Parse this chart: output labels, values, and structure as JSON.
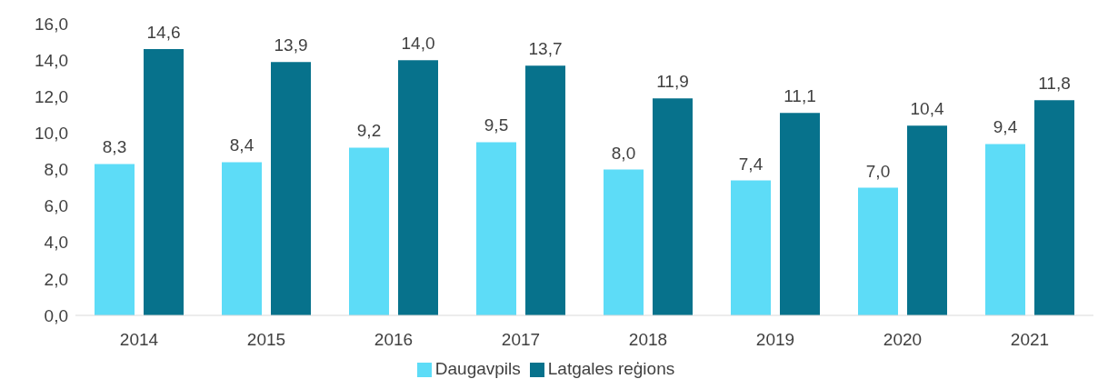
{
  "chart_data": {
    "type": "bar",
    "categories": [
      "2014",
      "2015",
      "2016",
      "2017",
      "2018",
      "2019",
      "2020",
      "2021"
    ],
    "series": [
      {
        "name": "Daugavpils",
        "color": "#5ddcf7",
        "values": [
          8.3,
          8.4,
          9.2,
          9.5,
          8.0,
          7.4,
          7.0,
          9.4
        ],
        "value_labels": [
          "8,3",
          "8,4",
          "9,2",
          "9,5",
          "8,0",
          "7,4",
          "7,0",
          "9,4"
        ]
      },
      {
        "name": "Latgales reģions",
        "color": "#07728c",
        "values": [
          14.6,
          13.9,
          14.0,
          13.7,
          11.9,
          11.1,
          10.4,
          11.8
        ],
        "value_labels": [
          "14,6",
          "13,9",
          "14,0",
          "13,7",
          "11,9",
          "11,1",
          "10,4",
          "11,8"
        ]
      }
    ],
    "ylim": [
      0,
      16
    ],
    "yticks": [
      {
        "value": 0,
        "label": "0,0"
      },
      {
        "value": 2,
        "label": "2,0"
      },
      {
        "value": 4,
        "label": "4,0"
      },
      {
        "value": 6,
        "label": "6,0"
      },
      {
        "value": 8,
        "label": "8,0"
      },
      {
        "value": 10,
        "label": "10,0"
      },
      {
        "value": 12,
        "label": "12,0"
      },
      {
        "value": 14,
        "label": "14,0"
      },
      {
        "value": 16,
        "label": "16,0"
      }
    ],
    "grid": false,
    "legend": "bottom"
  }
}
